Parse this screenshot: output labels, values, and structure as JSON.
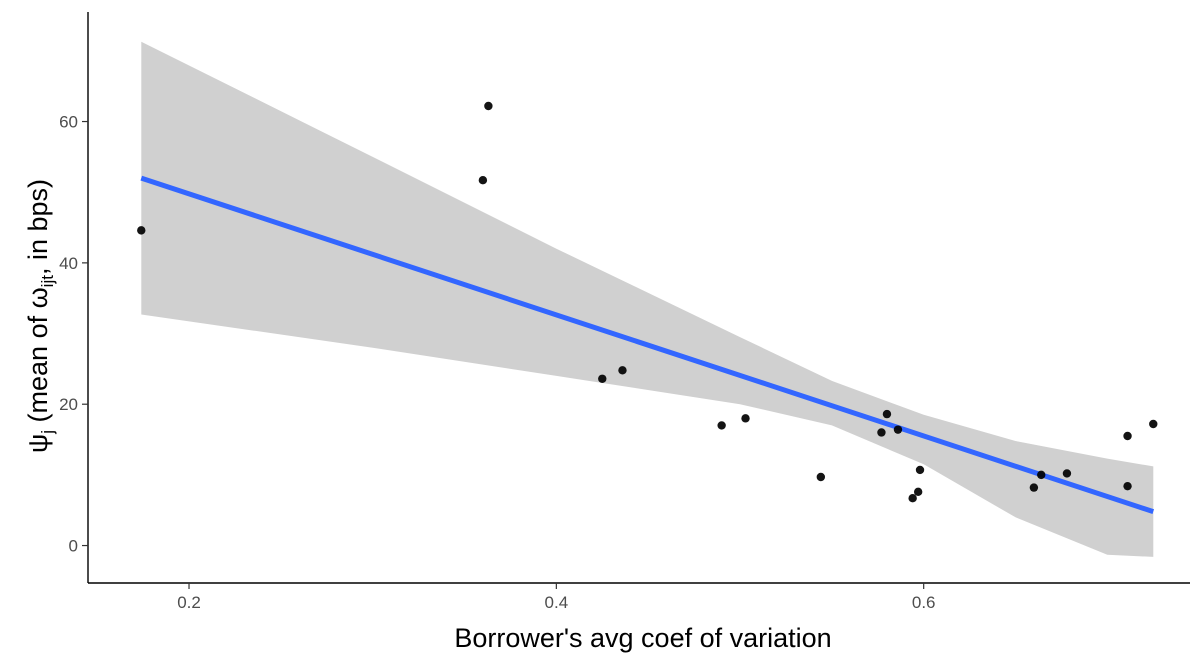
{
  "chart_data": {
    "type": "scatter",
    "xlabel": "Borrower's avg coef of variation",
    "ylabel": {
      "psi": "ψ",
      "psi_sub": "j",
      "mid": " (mean of ",
      "omega": "ω",
      "omega_sub": "ijt",
      "tail": ", in bps)"
    },
    "xlim": [
      0.145,
      0.745
    ],
    "ylim": [
      -5.3,
      75.5
    ],
    "x_ticks": [
      0.2,
      0.4,
      0.6
    ],
    "x_tick_labels": [
      "0.2",
      "0.4",
      "0.6"
    ],
    "y_ticks": [
      0,
      20,
      40,
      60
    ],
    "y_tick_labels": [
      "0",
      "20",
      "40",
      "60"
    ],
    "grid": false,
    "series": [
      {
        "points": [
          [
            0.174,
            44.6
          ],
          [
            0.36,
            51.7
          ],
          [
            0.363,
            62.2
          ],
          [
            0.425,
            23.6
          ],
          [
            0.436,
            24.8
          ],
          [
            0.49,
            17.0
          ],
          [
            0.503,
            18.0
          ],
          [
            0.544,
            9.7
          ],
          [
            0.577,
            16.0
          ],
          [
            0.58,
            18.6
          ],
          [
            0.586,
            16.4
          ],
          [
            0.594,
            6.7
          ],
          [
            0.597,
            7.6
          ],
          [
            0.598,
            10.7
          ],
          [
            0.66,
            8.2
          ],
          [
            0.664,
            10.0
          ],
          [
            0.678,
            10.2
          ],
          [
            0.711,
            15.5
          ],
          [
            0.711,
            8.4
          ],
          [
            0.725,
            17.2
          ]
        ],
        "color": "#000000"
      }
    ],
    "fit_line": {
      "x": [
        0.174,
        0.725
      ],
      "y": [
        52.0,
        4.8
      ],
      "color": "#3366FF"
    },
    "confidence_band": {
      "x": [
        0.174,
        0.3,
        0.4,
        0.5,
        0.55,
        0.6,
        0.65,
        0.7,
        0.725
      ],
      "upper": [
        71.3,
        55.0,
        42.0,
        29.5,
        23.3,
        18.5,
        14.8,
        12.3,
        11.2
      ],
      "lower": [
        32.7,
        28.0,
        24.0,
        20.0,
        17.0,
        11.5,
        4.0,
        -1.3,
        -1.6
      ],
      "color": "#D0D0D0"
    }
  }
}
